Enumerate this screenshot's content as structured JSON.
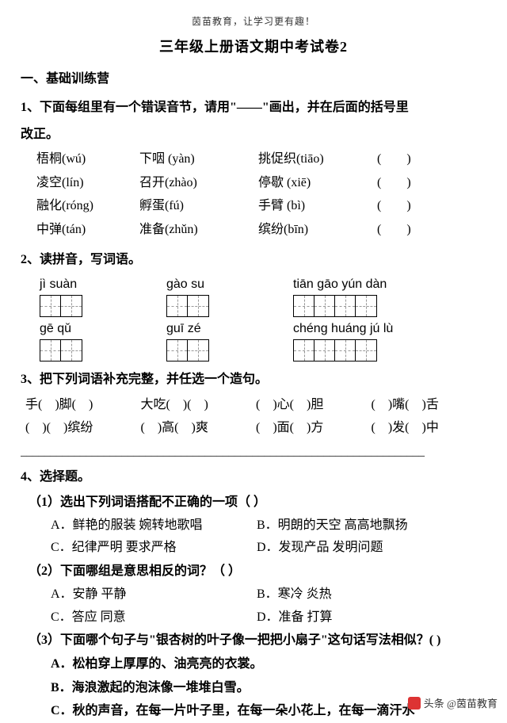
{
  "header_small": "茵苗教育，让学习更有趣！",
  "title": "三年级上册语文期中考试卷2",
  "section1": "一、基础训练营",
  "q1": {
    "head_a": "1、下面每组里有一个错误音节，请用\"——\"画出，并在后面的括号里",
    "head_b": "改正。",
    "rows": [
      {
        "c1": "梧桐(wú)",
        "c2": "下咽 (yàn)",
        "c3": "挑促织(tiāo)",
        "c4": "(　　)"
      },
      {
        "c1": "凌空(lín)",
        "c2": "召开(zhào)",
        "c3": "停歇 (xiē)",
        "c4": "(　　)"
      },
      {
        "c1": "融化(róng)",
        "c2": "孵蛋(fú)",
        "c3": "手臂 (bì)",
        "c4": "(　　)"
      },
      {
        "c1": "中弹(tán)",
        "c2": "准备(zhǔn)",
        "c3": "缤纷(bīn)",
        "c4": "(　　)"
      }
    ]
  },
  "q2": {
    "head": "2、读拼音，写词语。",
    "r1": {
      "a": "jì suàn",
      "b": "gào su",
      "c": "tiān  gāo  yún dàn"
    },
    "r2": {
      "a": "gē qǔ",
      "b": "guī   zé",
      "c": "chéng huáng jú lù"
    }
  },
  "q3": {
    "head": "3、把下列词语补充完整，并任选一个造句。",
    "r1": {
      "a": "手(　)脚(　)",
      "b": "大吃(　)(　)",
      "c": "(　)心(　)胆",
      "d": "(　)嘴(　)舌"
    },
    "r2": {
      "a": "(　)(　)缤纷",
      "b": "(　)高(　)爽",
      "c": "(　)面(　)方",
      "d": "(　)发(　)中"
    }
  },
  "dash": "____________________________________________________________________",
  "q4": {
    "head": "4、选择题。",
    "s1": {
      "q": "（1）选出下列词语搭配不正确的一项（  ）",
      "a1": "A．鲜艳的服装  婉转地歌唱",
      "b1": "B．明朗的天空  高高地飘扬",
      "a2": "C．纪律严明  要求严格",
      "b2": "D．发现产品  发明问题"
    },
    "s2": {
      "q": "（2）下面哪组是意思相反的词？（  ）",
      "a1": "A．安静 平静",
      "b1": "B．寒冷 炎热",
      "a2": "C．答应 同意",
      "b2": "D．准备 打算"
    },
    "s3": {
      "q": "（3）下面哪个句子与\"银杏树的叶子像一把把小扇子\"这句话写法相似？(  )",
      "a": "A．松柏穿上厚厚的、油亮亮的衣裳。",
      "b": "B．海浪激起的泡沫像一堆堆白雪。",
      "c": "C．秋的声音，在每一片叶子里，在每一朵小花上，在每一滴汗水"
    }
  },
  "footer": "头条 @茵苗教育"
}
